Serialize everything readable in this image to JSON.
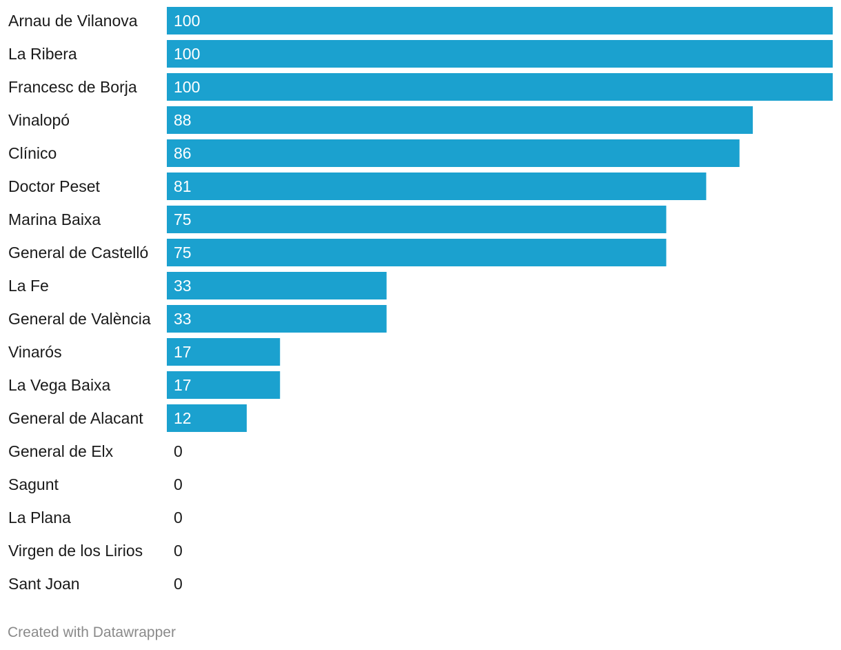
{
  "chart_data": {
    "type": "bar",
    "orientation": "horizontal",
    "categories": [
      "Arnau de Vilanova",
      "La Ribera",
      "Francesc de Borja",
      "Vinalopó",
      "Clínico",
      "Doctor Peset",
      "Marina Baixa",
      "General de Castelló",
      "La Fe",
      "General de València",
      "Vinarós",
      "La Vega Baixa",
      "General de Alacant",
      "General de Elx",
      "Sagunt",
      "La Plana",
      "Virgen de los Lirios",
      "Sant Joan"
    ],
    "values": [
      100,
      100,
      100,
      88,
      86,
      81,
      75,
      75,
      33,
      33,
      17,
      17,
      12,
      0,
      0,
      0,
      0,
      0
    ],
    "xlim": [
      0,
      100
    ],
    "bar_color": "#1ba1cf",
    "title": "",
    "xlabel": "",
    "ylabel": ""
  },
  "footer": {
    "credit": "Created with Datawrapper"
  }
}
